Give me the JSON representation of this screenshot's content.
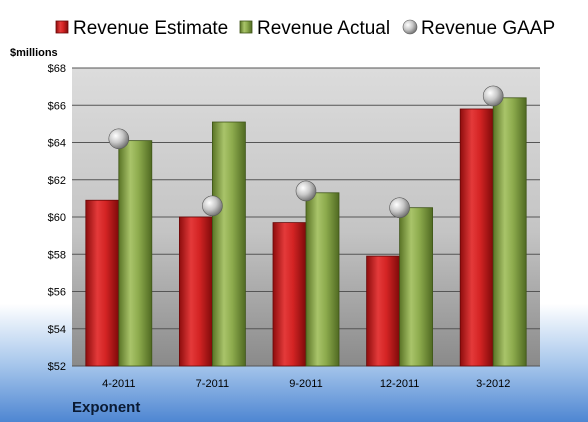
{
  "brand": "Exponent",
  "chart_data": {
    "type": "bar",
    "unit_label": "$millions",
    "categories": [
      "4-2011",
      "7-2011",
      "9-2011",
      "12-2011",
      "3-2012"
    ],
    "series": [
      {
        "name": "Revenue Estimate",
        "kind": "bar",
        "color": "#cc1f1f",
        "values": [
          60.9,
          60.0,
          59.7,
          57.9,
          65.8
        ]
      },
      {
        "name": "Revenue Actual",
        "kind": "bar",
        "color": "#8aa64a",
        "values": [
          64.1,
          65.1,
          61.3,
          60.5,
          66.4
        ]
      },
      {
        "name": "Revenue GAAP",
        "kind": "marker",
        "color": "#b8b8b8",
        "values": [
          64.2,
          60.6,
          61.4,
          60.5,
          66.5
        ]
      }
    ],
    "ylim": [
      52,
      68
    ],
    "yticks": [
      "$52",
      "$54",
      "$56",
      "$58",
      "$60",
      "$62",
      "$64",
      "$66",
      "$68"
    ],
    "ytick_values": [
      52,
      54,
      56,
      58,
      60,
      62,
      64,
      66,
      68
    ],
    "grid": true,
    "legend_position": "top"
  }
}
